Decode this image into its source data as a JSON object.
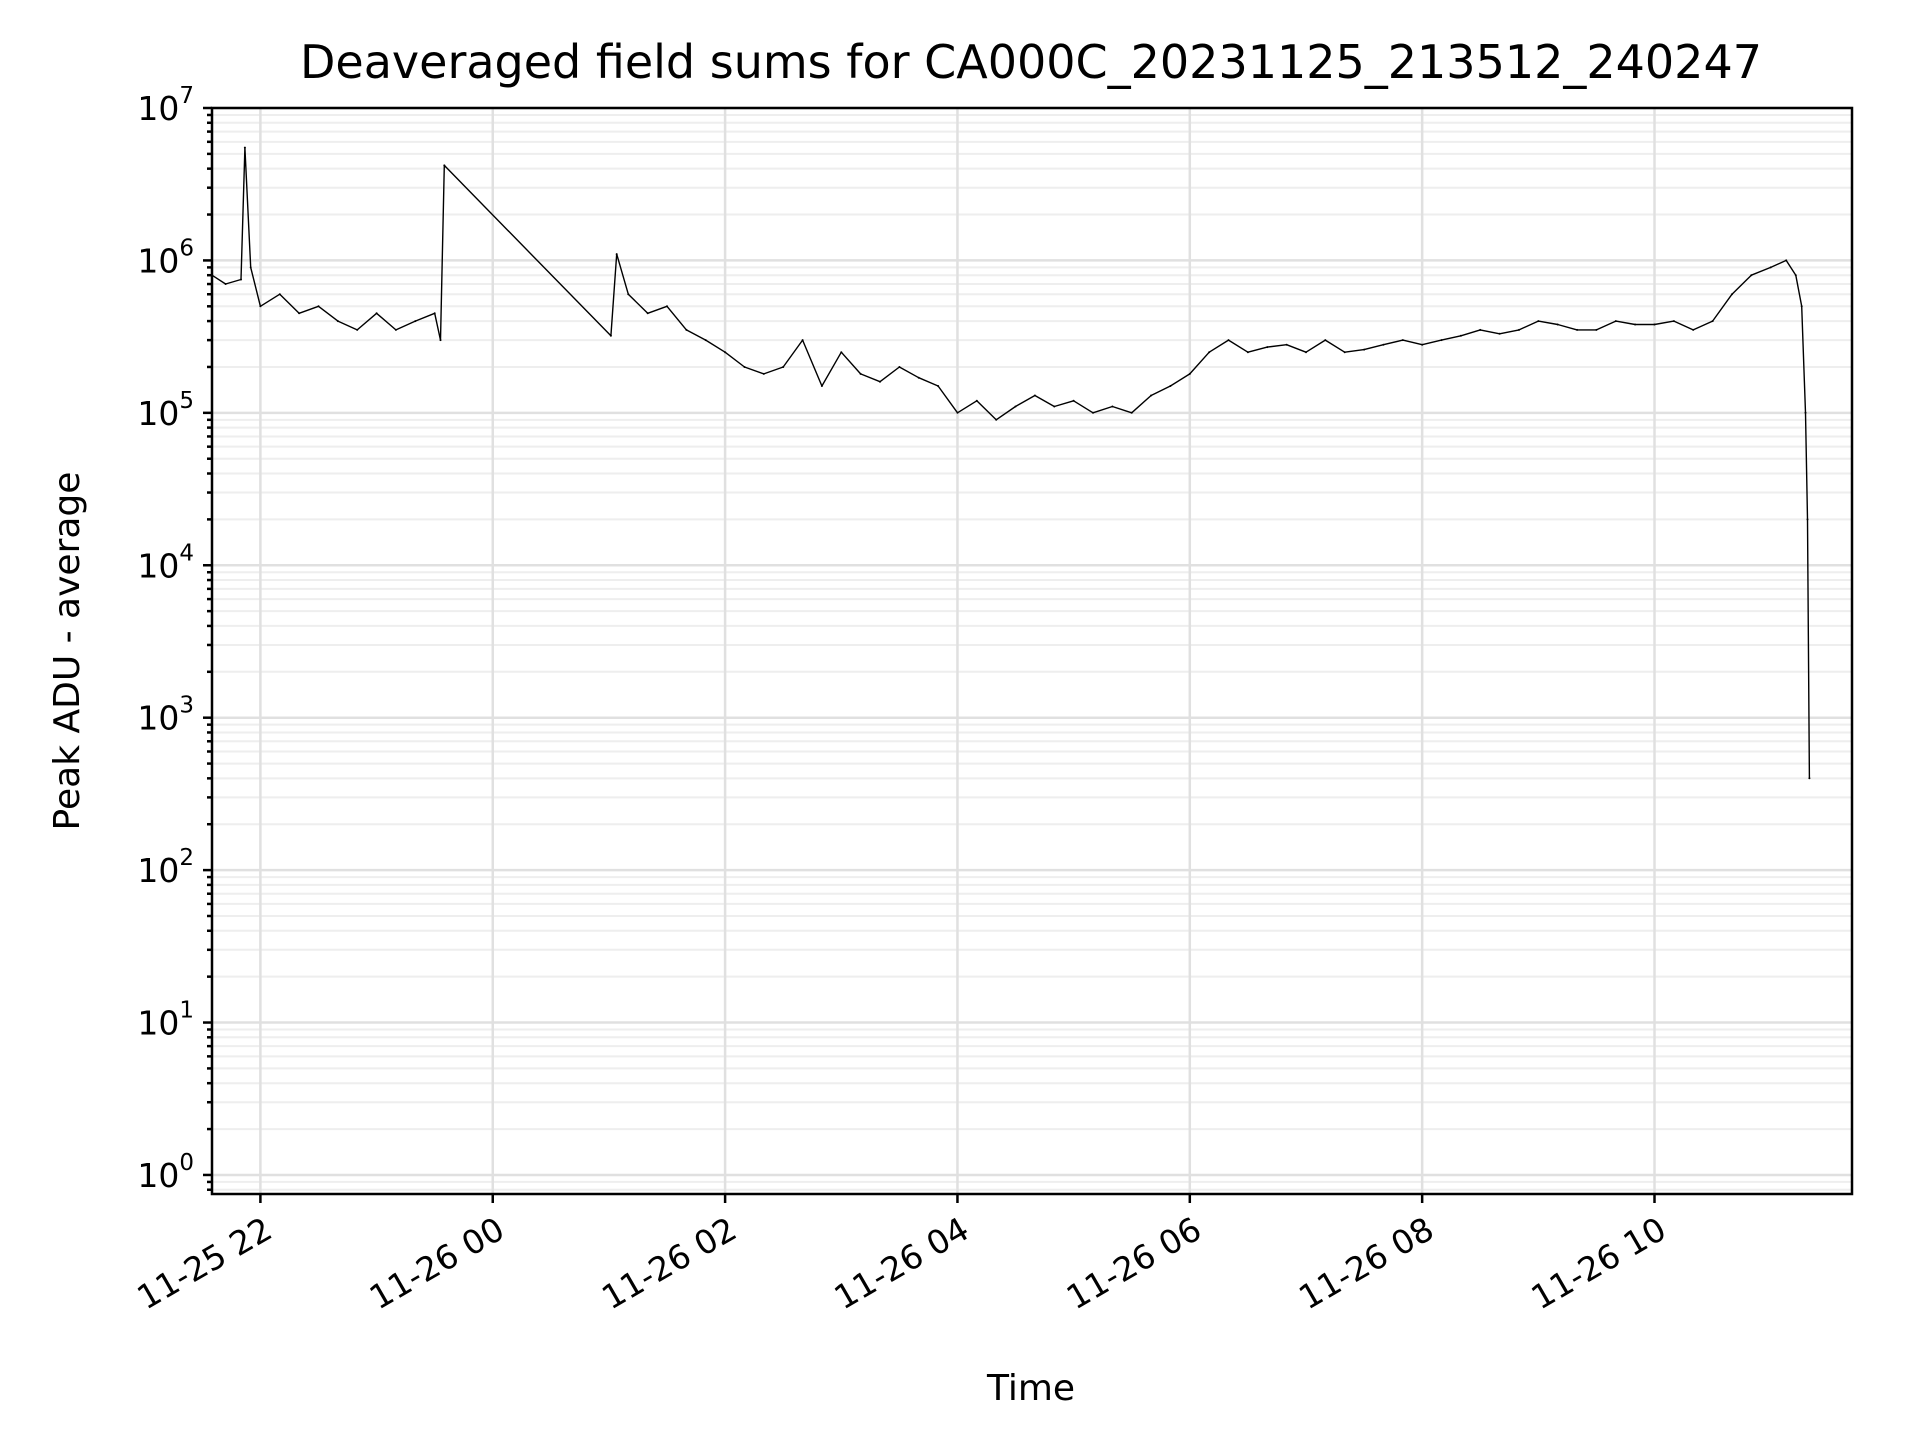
{
  "chart_data": {
    "type": "line",
    "title": "Deaveraged field sums for CA000C_20231125_213512_240247",
    "xlabel": "Time",
    "ylabel": "Peak ADU - average",
    "yscale": "log",
    "ylim": [
      0.75,
      10000000
    ],
    "xlim": [
      "2023-11-25 21:35",
      "2023-11-26 11:42"
    ],
    "grid": true,
    "legend": "none",
    "line_color": "#000000",
    "y_ticks": [
      {
        "base": "10",
        "exp": "0",
        "value": 1
      },
      {
        "base": "10",
        "exp": "1",
        "value": 10
      },
      {
        "base": "10",
        "exp": "2",
        "value": 100
      },
      {
        "base": "10",
        "exp": "3",
        "value": 1000
      },
      {
        "base": "10",
        "exp": "4",
        "value": 10000
      },
      {
        "base": "10",
        "exp": "5",
        "value": 100000
      },
      {
        "base": "10",
        "exp": "6",
        "value": 1000000
      },
      {
        "base": "10",
        "exp": "7",
        "value": 10000000
      }
    ],
    "x_ticks": [
      {
        "label": "11-25 22",
        "time": "2023-11-25 22:00"
      },
      {
        "label": "11-26 00",
        "time": "2023-11-26 00:00"
      },
      {
        "label": "11-26 02",
        "time": "2023-11-26 02:00"
      },
      {
        "label": "11-26 04",
        "time": "2023-11-26 04:00"
      },
      {
        "label": "11-26 06",
        "time": "2023-11-26 06:00"
      },
      {
        "label": "11-26 08",
        "time": "2023-11-26 08:00"
      },
      {
        "label": "11-26 10",
        "time": "2023-11-26 10:00"
      }
    ],
    "series": [
      {
        "x": [
          "2023-11-25 21:35",
          "2023-11-25 21:42",
          "2023-11-25 21:50",
          "2023-11-25 21:52",
          "2023-11-25 21:55",
          "2023-11-25 22:00",
          "2023-11-25 22:10",
          "2023-11-25 22:20",
          "2023-11-25 22:30",
          "2023-11-25 22:40",
          "2023-11-25 22:50",
          "2023-11-25 23:00",
          "2023-11-25 23:10",
          "2023-11-25 23:20",
          "2023-11-25 23:30",
          "2023-11-25 23:33",
          "2023-11-25 23:35",
          "2023-11-26 01:01",
          "2023-11-26 01:04",
          "2023-11-26 01:10",
          "2023-11-26 01:20",
          "2023-11-26 01:30",
          "2023-11-26 01:40",
          "2023-11-26 01:50",
          "2023-11-26 02:00",
          "2023-11-26 02:10",
          "2023-11-26 02:20",
          "2023-11-26 02:30",
          "2023-11-26 02:40",
          "2023-11-26 02:50",
          "2023-11-26 03:00",
          "2023-11-26 03:10",
          "2023-11-26 03:20",
          "2023-11-26 03:30",
          "2023-11-26 03:40",
          "2023-11-26 03:50",
          "2023-11-26 04:00",
          "2023-11-26 04:10",
          "2023-11-26 04:20",
          "2023-11-26 04:30",
          "2023-11-26 04:40",
          "2023-11-26 04:50",
          "2023-11-26 05:00",
          "2023-11-26 05:10",
          "2023-11-26 05:20",
          "2023-11-26 05:30",
          "2023-11-26 05:40",
          "2023-11-26 05:50",
          "2023-11-26 06:00",
          "2023-11-26 06:10",
          "2023-11-26 06:20",
          "2023-11-26 06:30",
          "2023-11-26 06:40",
          "2023-11-26 06:50",
          "2023-11-26 07:00",
          "2023-11-26 07:10",
          "2023-11-26 07:20",
          "2023-11-26 07:30",
          "2023-11-26 07:40",
          "2023-11-26 07:50",
          "2023-11-26 08:00",
          "2023-11-26 08:10",
          "2023-11-26 08:20",
          "2023-11-26 08:30",
          "2023-11-26 08:40",
          "2023-11-26 08:50",
          "2023-11-26 09:00",
          "2023-11-26 09:10",
          "2023-11-26 09:20",
          "2023-11-26 09:30",
          "2023-11-26 09:40",
          "2023-11-26 09:50",
          "2023-11-26 10:00",
          "2023-11-26 10:10",
          "2023-11-26 10:20",
          "2023-11-26 10:30",
          "2023-11-26 10:40",
          "2023-11-26 10:50",
          "2023-11-26 11:00",
          "2023-11-26 11:08",
          "2023-11-26 11:13",
          "2023-11-26 11:16",
          "2023-11-26 11:18",
          "2023-11-26 11:19",
          "2023-11-26 11:20"
        ],
        "y": [
          800000,
          700000,
          750000,
          5500000,
          900000,
          500000,
          600000,
          450000,
          500000,
          400000,
          350000,
          450000,
          350000,
          400000,
          450000,
          300000,
          4200000,
          320000,
          1100000,
          600000,
          450000,
          500000,
          350000,
          300000,
          250000,
          200000,
          180000,
          200000,
          300000,
          150000,
          250000,
          180000,
          160000,
          200000,
          170000,
          150000,
          100000,
          120000,
          90000,
          110000,
          130000,
          110000,
          120000,
          100000,
          110000,
          100000,
          130000,
          150000,
          180000,
          250000,
          300000,
          250000,
          270000,
          280000,
          250000,
          300000,
          250000,
          260000,
          280000,
          300000,
          280000,
          300000,
          320000,
          350000,
          330000,
          350000,
          400000,
          380000,
          350000,
          350000,
          400000,
          380000,
          380000,
          400000,
          350000,
          400000,
          600000,
          800000,
          900000,
          1000000,
          800000,
          500000,
          100000,
          20000,
          400
        ]
      }
    ]
  }
}
